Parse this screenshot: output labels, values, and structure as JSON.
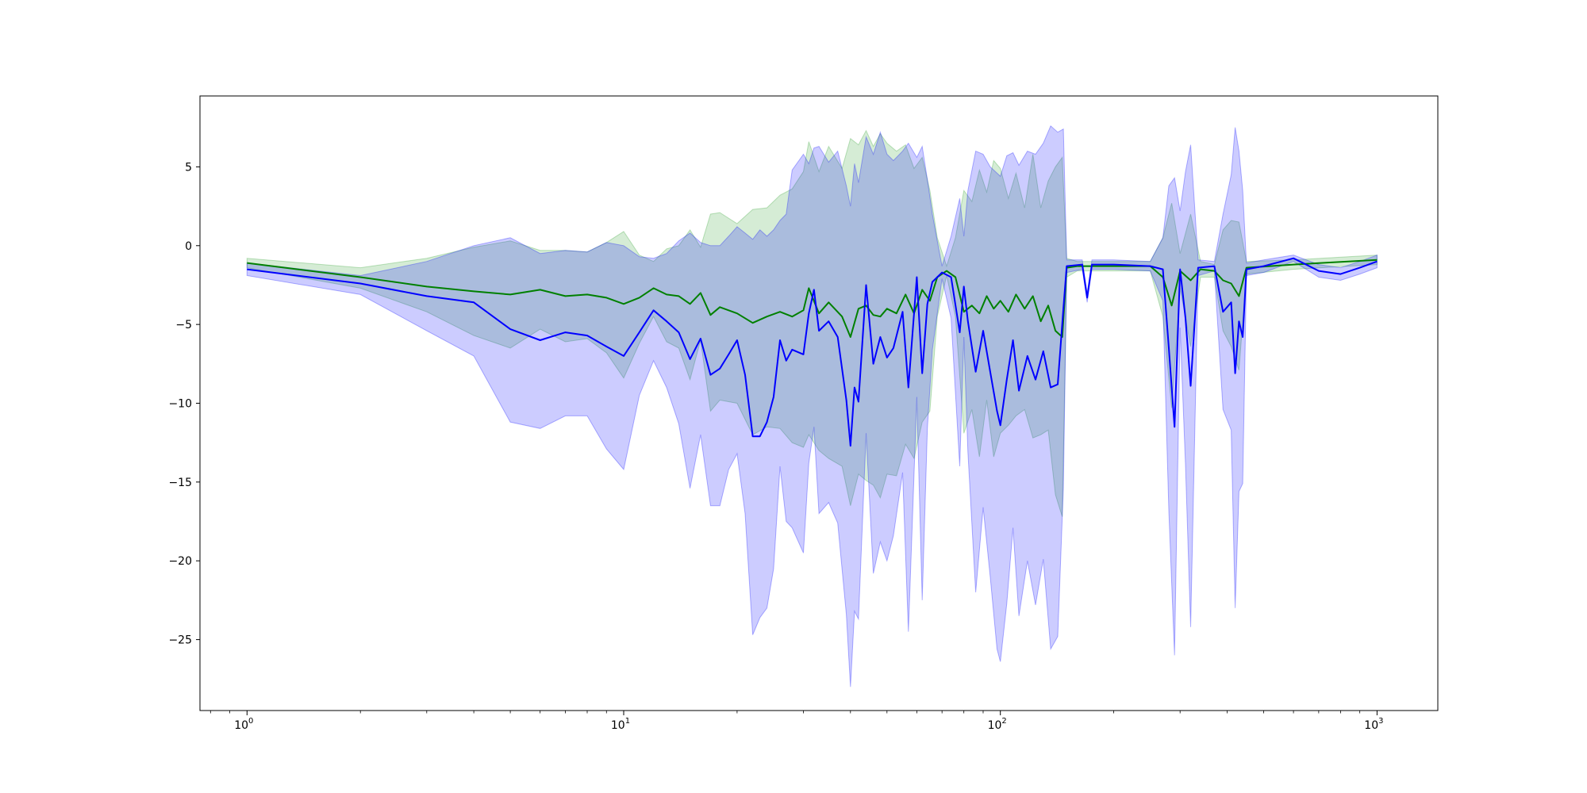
{
  "chart_data": {
    "type": "line",
    "title": "",
    "xlabel": "",
    "ylabel": "",
    "xscale": "log",
    "xlim": [
      0.75,
      1450
    ],
    "ylim": [
      -29.5,
      9.5
    ],
    "grid": false,
    "legend": "none",
    "x_ticks": [
      {
        "value": 1,
        "base": "10",
        "exp": "0"
      },
      {
        "value": 10,
        "base": "10",
        "exp": "1"
      },
      {
        "value": 100,
        "base": "10",
        "exp": "2"
      },
      {
        "value": 1000,
        "base": "10",
        "exp": "3"
      }
    ],
    "y_ticks": [
      {
        "value": 5,
        "label": "5"
      },
      {
        "value": 0,
        "label": "0"
      },
      {
        "value": -5,
        "label": "−5"
      },
      {
        "value": -10,
        "label": "−10"
      },
      {
        "value": -15,
        "label": "−15"
      },
      {
        "value": -20,
        "label": "−20"
      },
      {
        "value": -25,
        "label": "−25"
      }
    ],
    "series": [
      {
        "color": "#008000",
        "band_color": "#2ca02c",
        "points": [
          [
            1,
            -1.1,
            -0.8,
            -1.4
          ],
          [
            2,
            -2.0,
            -1.4,
            -2.7
          ],
          [
            3,
            -2.6,
            -0.8,
            -4.2
          ],
          [
            4,
            -2.9,
            -0.1,
            -5.7
          ],
          [
            5,
            -3.1,
            0.3,
            -6.5
          ],
          [
            6,
            -2.8,
            -0.3,
            -5.3
          ],
          [
            7,
            -3.2,
            -0.3,
            -6.1
          ],
          [
            8,
            -3.1,
            -0.4,
            -5.9
          ],
          [
            9,
            -3.3,
            0.2,
            -6.8
          ],
          [
            10,
            -3.7,
            0.9,
            -8.4
          ],
          [
            11,
            -3.3,
            -0.6,
            -6.2
          ],
          [
            12,
            -2.7,
            -1.0,
            -4.5
          ],
          [
            13,
            -3.1,
            -0.2,
            -6.1
          ],
          [
            14,
            -3.2,
            0.0,
            -6.5
          ],
          [
            15,
            -3.7,
            1.0,
            -8.5
          ],
          [
            16,
            -3.0,
            -0.1,
            -6.0
          ],
          [
            17,
            -4.4,
            2.0,
            -10.5
          ],
          [
            18,
            -3.9,
            2.1,
            -9.8
          ],
          [
            20,
            -4.3,
            1.4,
            -10.0
          ],
          [
            22,
            -4.9,
            2.3,
            -12.0
          ],
          [
            24,
            -4.5,
            2.4,
            -11.5
          ],
          [
            26,
            -4.2,
            3.2,
            -11.6
          ],
          [
            28,
            -4.5,
            3.6,
            -12.5
          ],
          [
            30,
            -4.1,
            4.7,
            -12.8
          ],
          [
            31,
            -2.7,
            6.6,
            -12.0
          ],
          [
            33,
            -4.3,
            4.7,
            -13.0
          ],
          [
            35,
            -3.6,
            6.3,
            -13.5
          ],
          [
            38,
            -4.5,
            4.9,
            -14.0
          ],
          [
            40,
            -5.8,
            6.8,
            -16.5
          ],
          [
            42,
            -4.0,
            6.4,
            -14.5
          ],
          [
            44,
            -3.8,
            7.3,
            -14.9
          ],
          [
            46,
            -4.4,
            6.3,
            -15.2
          ],
          [
            48,
            -4.5,
            7.1,
            -16.0
          ],
          [
            50,
            -4.0,
            6.5,
            -14.5
          ],
          [
            53,
            -4.3,
            6.0,
            -14.6
          ],
          [
            56,
            -3.1,
            6.4,
            -12.6
          ],
          [
            59,
            -4.3,
            4.9,
            -13.5
          ],
          [
            62,
            -2.8,
            5.6,
            -11.2
          ],
          [
            65,
            -3.5,
            3.5,
            -10.5
          ],
          [
            68,
            -2.0,
            0.5,
            -4.5
          ],
          [
            72,
            -1.6,
            -1.3,
            -1.9
          ],
          [
            76,
            -2.0,
            0.5,
            -4.5
          ],
          [
            80,
            -4.2,
            3.5,
            -11.9
          ],
          [
            84,
            -3.8,
            2.8,
            -10.4
          ],
          [
            88,
            -4.3,
            4.8,
            -13.4
          ],
          [
            92,
            -3.2,
            3.4,
            -9.8
          ],
          [
            96,
            -4.0,
            5.4,
            -13.4
          ],
          [
            100,
            -3.5,
            4.9,
            -11.9
          ],
          [
            105,
            -4.2,
            3.0,
            -11.4
          ],
          [
            110,
            -3.1,
            4.6,
            -10.8
          ],
          [
            116,
            -4.0,
            2.4,
            -10.4
          ],
          [
            122,
            -3.2,
            5.8,
            -12.2
          ],
          [
            128,
            -4.8,
            2.4,
            -12.0
          ],
          [
            134,
            -3.8,
            4.1,
            -11.7
          ],
          [
            140,
            -5.4,
            5.0,
            -15.8
          ],
          [
            146,
            -5.8,
            5.6,
            -17.2
          ],
          [
            150,
            -1.4,
            -0.8,
            -2.0
          ],
          [
            160,
            -1.3,
            -1.0,
            -1.6
          ],
          [
            200,
            -1.3,
            -1.0,
            -1.6
          ],
          [
            250,
            -1.3,
            -1.0,
            -1.6
          ],
          [
            270,
            -2.0,
            0.5,
            -4.5
          ],
          [
            285,
            -3.8,
            2.7,
            -10.3
          ],
          [
            300,
            -1.6,
            -0.5,
            -2.7
          ],
          [
            320,
            -2.2,
            2.0,
            -6.4
          ],
          [
            340,
            -1.5,
            -1.0,
            -2.0
          ],
          [
            370,
            -1.6,
            -1.2,
            -2.0
          ],
          [
            390,
            -2.2,
            1.0,
            -5.4
          ],
          [
            410,
            -2.4,
            1.6,
            -6.4
          ],
          [
            430,
            -3.2,
            1.5,
            -7.9
          ],
          [
            450,
            -1.4,
            -1.0,
            -1.8
          ],
          [
            600,
            -1.2,
            -0.9,
            -1.5
          ],
          [
            1000,
            -0.9,
            -0.6,
            -1.2
          ]
        ]
      },
      {
        "color": "#0000ff",
        "band_color": "#0000ff",
        "points": [
          [
            1,
            -1.5,
            -1.1,
            -1.9
          ],
          [
            2,
            -2.4,
            -1.9,
            -3.1
          ],
          [
            3,
            -3.2,
            -1.0,
            -5.4
          ],
          [
            4,
            -3.6,
            0.0,
            -7.0
          ],
          [
            5,
            -5.3,
            0.5,
            -11.2
          ],
          [
            6,
            -6.0,
            -0.5,
            -11.6
          ],
          [
            7,
            -5.5,
            -0.3,
            -10.8
          ],
          [
            8,
            -5.7,
            -0.4,
            -10.8
          ],
          [
            9,
            -6.4,
            0.2,
            -12.9
          ],
          [
            10,
            -7.0,
            0.0,
            -14.2
          ],
          [
            11,
            -5.5,
            -0.7,
            -9.5
          ],
          [
            12,
            -4.1,
            -0.8,
            -7.3
          ],
          [
            13,
            -4.8,
            -0.5,
            -9.0
          ],
          [
            14,
            -5.5,
            0.3,
            -11.3
          ],
          [
            15,
            -7.2,
            0.8,
            -15.4
          ],
          [
            16,
            -5.9,
            0.2,
            -12.0
          ],
          [
            17,
            -8.2,
            0.0,
            -16.5
          ],
          [
            18,
            -7.8,
            0.0,
            -16.5
          ],
          [
            19,
            -6.9,
            0.6,
            -14.2
          ],
          [
            20,
            -6.0,
            1.2,
            -13.2
          ],
          [
            21,
            -8.2,
            0.8,
            -17.0
          ],
          [
            22,
            -12.1,
            0.4,
            -24.7
          ],
          [
            23,
            -12.1,
            1.0,
            -23.6
          ],
          [
            24,
            -11.2,
            0.6,
            -23.0
          ],
          [
            25,
            -9.6,
            1.0,
            -20.5
          ],
          [
            26,
            -6.0,
            1.6,
            -14.0
          ],
          [
            27,
            -7.3,
            2.0,
            -17.5
          ],
          [
            28,
            -6.6,
            4.8,
            -17.9
          ],
          [
            30,
            -6.9,
            5.8,
            -19.5
          ],
          [
            31,
            -4.3,
            5.2,
            -13.8
          ],
          [
            32,
            -2.8,
            6.2,
            -11.5
          ],
          [
            33,
            -5.4,
            6.3,
            -17.0
          ],
          [
            35,
            -4.8,
            5.3,
            -16.3
          ],
          [
            37,
            -5.8,
            6.0,
            -17.6
          ],
          [
            39,
            -9.8,
            3.8,
            -23.4
          ],
          [
            40,
            -12.7,
            2.5,
            -28.0
          ],
          [
            41,
            -9.0,
            5.2,
            -23.2
          ],
          [
            42,
            -9.9,
            4.0,
            -23.7
          ],
          [
            44,
            -2.5,
            6.9,
            -11.9
          ],
          [
            46,
            -7.5,
            5.8,
            -20.8
          ],
          [
            48,
            -5.8,
            7.2,
            -18.8
          ],
          [
            50,
            -7.1,
            5.8,
            -20.0
          ],
          [
            52,
            -6.5,
            5.4,
            -18.4
          ],
          [
            55,
            -4.2,
            6.0,
            -14.4
          ],
          [
            57,
            -9.0,
            6.5,
            -24.5
          ],
          [
            60,
            -2.0,
            5.6,
            -9.6
          ],
          [
            62,
            -8.1,
            6.3,
            -22.5
          ],
          [
            64,
            -3.7,
            4.2,
            -11.6
          ],
          [
            66,
            -2.3,
            2.0,
            -6.6
          ],
          [
            68,
            -2.0,
            0.3,
            -4.3
          ],
          [
            70,
            -1.7,
            -1.3,
            -2.1
          ],
          [
            74,
            -2.0,
            0.6,
            -4.6
          ],
          [
            78,
            -5.5,
            3.0,
            -14.0
          ],
          [
            80,
            -2.6,
            0.6,
            -5.8
          ],
          [
            82,
            -4.8,
            3.5,
            -13.1
          ],
          [
            86,
            -8.0,
            6.0,
            -22.0
          ],
          [
            90,
            -5.4,
            5.8,
            -16.6
          ],
          [
            94,
            -8.0,
            5.0,
            -21.0
          ],
          [
            98,
            -10.5,
            4.6,
            -25.6
          ],
          [
            100,
            -11.4,
            4.4,
            -26.4
          ],
          [
            104,
            -8.5,
            5.7,
            -22.7
          ],
          [
            108,
            -6.0,
            5.9,
            -17.9
          ],
          [
            112,
            -9.2,
            5.1,
            -23.5
          ],
          [
            118,
            -7.0,
            6.0,
            -20.0
          ],
          [
            124,
            -8.5,
            5.8,
            -22.8
          ],
          [
            130,
            -6.7,
            6.5,
            -19.9
          ],
          [
            136,
            -9.0,
            7.6,
            -25.6
          ],
          [
            142,
            -8.8,
            7.2,
            -24.8
          ],
          [
            147,
            -4.0,
            7.4,
            -15.4
          ],
          [
            150,
            -1.3,
            -0.9,
            -1.7
          ],
          [
            165,
            -1.2,
            -0.9,
            -1.5
          ],
          [
            170,
            -3.3,
            -3.0,
            -3.6
          ],
          [
            175,
            -1.2,
            -0.9,
            -1.5
          ],
          [
            200,
            -1.2,
            -0.9,
            -1.5
          ],
          [
            250,
            -1.3,
            -1.0,
            -1.6
          ],
          [
            270,
            -1.5,
            0.5,
            -3.5
          ],
          [
            280,
            -6.5,
            3.8,
            -16.8
          ],
          [
            290,
            -11.5,
            4.3,
            -26.0
          ],
          [
            300,
            -1.5,
            2.2,
            -5.2
          ],
          [
            310,
            -4.6,
            4.7,
            -13.9
          ],
          [
            320,
            -8.9,
            6.4,
            -24.2
          ],
          [
            335,
            -1.4,
            -0.9,
            -1.9
          ],
          [
            370,
            -1.3,
            -1.0,
            -1.6
          ],
          [
            390,
            -4.2,
            2.0,
            -10.4
          ],
          [
            410,
            -3.6,
            4.5,
            -11.7
          ],
          [
            420,
            -8.1,
            7.5,
            -23.0
          ],
          [
            430,
            -4.8,
            6.0,
            -15.6
          ],
          [
            440,
            -5.8,
            3.5,
            -15.1
          ],
          [
            450,
            -1.5,
            -1.1,
            -1.9
          ],
          [
            500,
            -1.3,
            -0.9,
            -1.7
          ],
          [
            600,
            -0.8,
            -0.6,
            -1.0
          ],
          [
            700,
            -1.6,
            -1.2,
            -2.0
          ],
          [
            800,
            -1.8,
            -1.4,
            -2.2
          ],
          [
            900,
            -1.4,
            -1.0,
            -1.8
          ],
          [
            1000,
            -1.0,
            -0.6,
            -1.4
          ]
        ]
      }
    ]
  }
}
